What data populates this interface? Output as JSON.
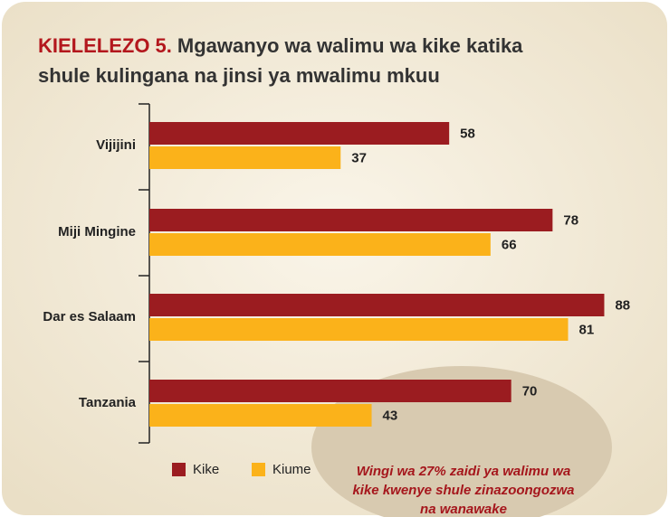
{
  "chart_data": {
    "type": "bar",
    "orientation": "horizontal",
    "title_label": "KIELELEZO 5.",
    "title": [
      "Mgawanyo wa walimu wa kike katika",
      "shule kulingana na jinsi ya mwalimu mkuu"
    ],
    "categories": [
      "Vijijini",
      "Miji Mingine",
      "Dar es Salaam",
      "Tanzania"
    ],
    "series": [
      {
        "name": "Kike",
        "color": "#9b1c20",
        "values": [
          58,
          78,
          88,
          70
        ]
      },
      {
        "name": "Kiume",
        "color": "#fbb21a",
        "values": [
          37,
          66,
          81,
          43
        ]
      }
    ],
    "xlim": [
      0,
      100
    ],
    "annotation": [
      "Wingi wa 27% zaidi ya walimu wa",
      "kike kwenye shule zinazoongozwa",
      "na wanawake"
    ]
  }
}
